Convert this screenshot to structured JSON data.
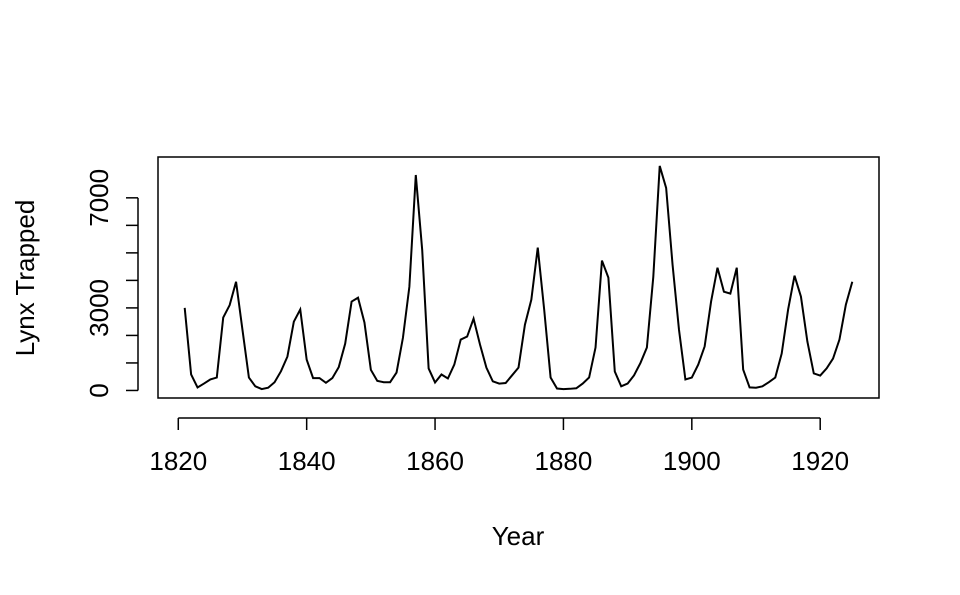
{
  "chart_data": {
    "type": "line",
    "x_label": "Year",
    "y_label": "Lynx Trapped",
    "x": [
      1821,
      1822,
      1823,
      1824,
      1825,
      1826,
      1827,
      1828,
      1829,
      1830,
      1831,
      1832,
      1833,
      1834,
      1835,
      1836,
      1837,
      1838,
      1839,
      1840,
      1841,
      1842,
      1843,
      1844,
      1845,
      1846,
      1847,
      1848,
      1849,
      1850,
      1851,
      1852,
      1853,
      1854,
      1855,
      1856,
      1857,
      1858,
      1859,
      1860,
      1861,
      1862,
      1863,
      1864,
      1865,
      1866,
      1867,
      1868,
      1869,
      1870,
      1871,
      1872,
      1873,
      1874,
      1875,
      1876,
      1877,
      1878,
      1879,
      1880,
      1881,
      1882,
      1883,
      1884,
      1885,
      1886,
      1887,
      1888,
      1889,
      1890,
      1891,
      1892,
      1893,
      1894,
      1895,
      1896,
      1897,
      1898,
      1899,
      1900,
      1901,
      1902,
      1903,
      1904,
      1905,
      1906,
      1907,
      1908,
      1909,
      1910,
      1911,
      1912,
      1913,
      1914,
      1915,
      1916,
      1917,
      1918,
      1919,
      1920,
      1921,
      1922,
      1923,
      1924,
      1925
    ],
    "values": [
      3000,
      580,
      110,
      250,
      400,
      470,
      2650,
      3100,
      3950,
      2200,
      470,
      150,
      50,
      100,
      300,
      700,
      1230,
      2500,
      2940,
      1120,
      450,
      450,
      280,
      450,
      850,
      1700,
      3230,
      3370,
      2470,
      750,
      350,
      300,
      300,
      650,
      1920,
      3770,
      7830,
      5100,
      800,
      290,
      580,
      435,
      940,
      1850,
      1960,
      2610,
      1670,
      830,
      330,
      250,
      270,
      550,
      830,
      2390,
      3300,
      5190,
      2940,
      470,
      70,
      50,
      60,
      80,
      250,
      470,
      1560,
      4720,
      4100,
      690,
      150,
      250,
      550,
      1000,
      1560,
      4130,
      8160,
      7360,
      4570,
      2210,
      400,
      470,
      940,
      1600,
      3230,
      4460,
      3590,
      3520,
      4460,
      760,
      110,
      100,
      150,
      300,
      470,
      1340,
      2940,
      4170,
      3410,
      1780,
      620,
      540,
      800,
      1160,
      1850,
      3120,
      3950
    ],
    "color": "#000000",
    "xlim": [
      1816.84,
      1929.16
    ],
    "xticks": [
      1820,
      1840,
      1860,
      1880,
      1900,
      1920
    ],
    "ylim": [
      -274,
      8484
    ],
    "yticks": [
      0,
      3000,
      7000
    ],
    "yminorticks": [
      1000,
      2000,
      4000,
      5000,
      6000
    ]
  }
}
